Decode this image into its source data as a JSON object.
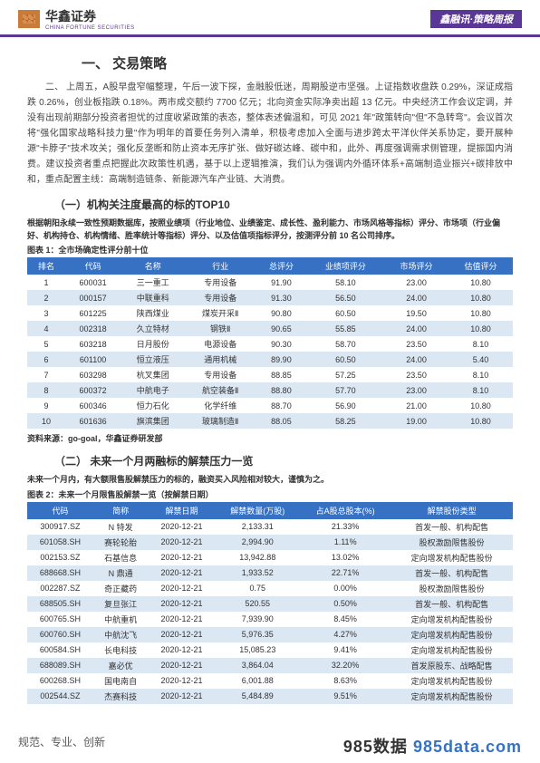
{
  "header": {
    "logo_cn": "华鑫证券",
    "logo_en": "CHINA FORTUNE SECURITIES",
    "badge": "鑫融讯·策略周报"
  },
  "section1": {
    "title": "一、   交易策略",
    "para": "二、   上周五，A股早盘窄幅整理，午后一波下探，金融股低迷，周期股逆市坚强。上证指数收盘跌 0.29%，深证成指跌 0.26%，创业板指跌 0.18%。两市成交额约 7700 亿元；北向资金实际净卖出超 13 亿元。中央经济工作会议定调，并没有出现前期部分投资者担忧的过度收紧政策的表态，整体表述偏温和，可见 2021 年\"政策转向\"但\"不急转弯\"。会议首次将\"强化国家战略科技力量\"作为明年的首要任务列入清单，积极考虑加入全面与进步跨太平洋伙伴关系协定，要开展种源\"卡脖子\"技术攻关；强化反垄断和防止资本无序扩张、做好碳达峰、碳中和，此外、再度强调需求侧管理，提振国内消费。建议投资者重点把握此次政策性机遇，基于以上逻辑推演，我们认为强调内外循环体系+高端制造业振兴+碳排放中和，重点配置主线：高端制造链条、新能源汽车产业链、大消费。"
  },
  "subsection1": {
    "title": "（一）机构关注度最高的标的TOP10",
    "desc": "根据朝阳永续一致性预期数据库，按照业绩项（行业地位、业绩鉴定、成长性、盈利能力、市场风格等指标）评分、市场项（行业偏好、机构持仓、机构情绪、胜率统计等指标）评分、以及估值项指标评分，按测评分前 10 名公司排序。",
    "caption": "图表 1：全市场确定性评分前十位"
  },
  "table1": {
    "headers": [
      "排名",
      "代码",
      "名称",
      "行业",
      "总评分",
      "业绩项评分",
      "市场评分",
      "估值评分"
    ],
    "rows": [
      [
        "1",
        "600031",
        "三一重工",
        "专用设备",
        "91.90",
        "58.10",
        "23.00",
        "10.80"
      ],
      [
        "2",
        "000157",
        "中联重科",
        "专用设备",
        "91.30",
        "56.50",
        "24.00",
        "10.80"
      ],
      [
        "3",
        "601225",
        "陕西煤业",
        "煤炭开采Ⅱ",
        "90.80",
        "60.50",
        "19.50",
        "10.80"
      ],
      [
        "4",
        "002318",
        "久立特材",
        "钢铁Ⅱ",
        "90.65",
        "55.85",
        "24.00",
        "10.80"
      ],
      [
        "5",
        "603218",
        "日月股份",
        "电源设备",
        "90.30",
        "58.70",
        "23.50",
        "8.10"
      ],
      [
        "6",
        "601100",
        "恒立液压",
        "通用机械",
        "89.90",
        "60.50",
        "24.00",
        "5.40"
      ],
      [
        "7",
        "603298",
        "杭叉集团",
        "专用设备",
        "88.85",
        "57.25",
        "23.50",
        "8.10"
      ],
      [
        "8",
        "600372",
        "中航电子",
        "航空装备Ⅱ",
        "88.80",
        "57.70",
        "23.00",
        "8.10"
      ],
      [
        "9",
        "600346",
        "恒力石化",
        "化学纤维",
        "88.70",
        "56.90",
        "21.00",
        "10.80"
      ],
      [
        "10",
        "601636",
        "旗滨集团",
        "玻璃制造Ⅱ",
        "88.05",
        "58.25",
        "19.00",
        "10.80"
      ]
    ],
    "source": "资料来源：go-goal，华鑫证券研发部"
  },
  "subsection2": {
    "title": "（二）   未来一个月两融标的解禁压力一览",
    "desc": "未来一个月内，有大额限售股解禁压力的标的，融资买入风险相对较大，谨慎为之。",
    "caption": "图表 2：未来一个月限售股解禁一览（按解禁日期）"
  },
  "table2": {
    "headers": [
      "代码",
      "简称",
      "解禁日期",
      "解禁数量(万股)",
      "占A股总股本(%)",
      "解禁股份类型"
    ],
    "rows": [
      [
        "300917.SZ",
        "N 特发",
        "2020-12-21",
        "2,133.31",
        "21.33%",
        "首发一般、机构配售"
      ],
      [
        "601058.SH",
        "赛轮轮胎",
        "2020-12-21",
        "2,994.90",
        "1.11%",
        "股权激励限售股份"
      ],
      [
        "002153.SZ",
        "石基信息",
        "2020-12-21",
        "13,942.88",
        "13.02%",
        "定向增发机构配售股份"
      ],
      [
        "688668.SH",
        "N 鼎通",
        "2020-12-21",
        "1,933.52",
        "22.71%",
        "首发一般、机构配售"
      ],
      [
        "002287.SZ",
        "奇正藏药",
        "2020-12-21",
        "0.75",
        "0.00%",
        "股权激励限售股份"
      ],
      [
        "688505.SH",
        "复旦张江",
        "2020-12-21",
        "520.55",
        "0.50%",
        "首发一般、机构配售"
      ],
      [
        "600765.SH",
        "中航重机",
        "2020-12-21",
        "7,939.90",
        "8.45%",
        "定向增发机构配售股份"
      ],
      [
        "600760.SH",
        "中航沈飞",
        "2020-12-21",
        "5,976.35",
        "4.27%",
        "定向增发机构配售股份"
      ],
      [
        "600584.SH",
        "长电科技",
        "2020-12-21",
        "15,085.23",
        "9.41%",
        "定向增发机构配售股份"
      ],
      [
        "688089.SH",
        "嘉必优",
        "2020-12-21",
        "3,864.04",
        "32.20%",
        "首发原股东、战略配售"
      ],
      [
        "600268.SH",
        "国电南自",
        "2020-12-21",
        "6,001.88",
        "8.63%",
        "定向增发机构配售股份"
      ],
      [
        "002544.SZ",
        "杰赛科技",
        "2020-12-21",
        "5,484.89",
        "9.51%",
        "定向增发机构配售股份"
      ]
    ]
  },
  "footer": {
    "left": "规范、专业、创新",
    "right1": "985数据",
    "right2": " 985data.com"
  }
}
